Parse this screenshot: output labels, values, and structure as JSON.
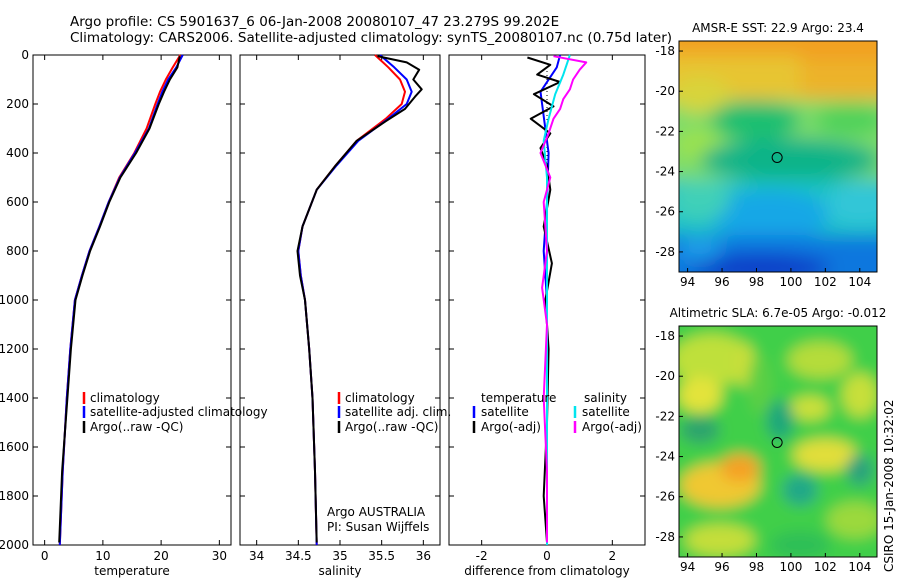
{
  "header": {
    "line1": "Argo profile: CS 5901637_6 06-Jan-2008 20080107_47 23.279S 99.202E",
    "line2": "Climatology: CARS2006. Satellite-adjusted climatology: synTS_20080107.nc (0.75d later)"
  },
  "side_label": "CSIRO 15-Jan-2008 10:32:02",
  "chart_data": [
    {
      "id": "temperature",
      "type": "line",
      "xlabel": "temperature",
      "ylabel": "",
      "xlim": [
        -2,
        32
      ],
      "ylim": [
        2000,
        0
      ],
      "xticks": [
        0,
        10,
        20,
        30
      ],
      "yticks": [
        0,
        200,
        400,
        600,
        800,
        1000,
        1200,
        1400,
        1600,
        1800,
        2000
      ],
      "legend": [
        "climatology",
        "satellite-adjusted climatology",
        "Argo(..raw -QC)"
      ],
      "series": [
        {
          "name": "climatology",
          "color": "#ff0000",
          "x": [
            23.3,
            22.0,
            20.8,
            19.8,
            19.0,
            17.5,
            15.4,
            12.8,
            11.0,
            9.4,
            7.7,
            6.4,
            5.2,
            4.4,
            3.8,
            3.1,
            2.6
          ],
          "y": [
            0,
            50,
            100,
            150,
            200,
            300,
            400,
            500,
            600,
            700,
            800,
            900,
            1000,
            1200,
            1400,
            1700,
            2000
          ]
        },
        {
          "name": "satellite-adjusted climatology",
          "color": "#0000ff",
          "x": [
            23.7,
            22.6,
            21.2,
            20.2,
            19.4,
            17.9,
            15.5,
            12.9,
            11.0,
            9.4,
            7.7,
            6.4,
            5.2,
            4.4,
            3.8,
            3.1,
            2.6
          ],
          "y": [
            0,
            50,
            100,
            150,
            200,
            300,
            400,
            500,
            600,
            700,
            800,
            900,
            1000,
            1200,
            1400,
            1700,
            2000
          ]
        },
        {
          "name": "Argo(..raw -QC)",
          "color": "#000000",
          "x": [
            23.2,
            22.8,
            21.5,
            20.5,
            19.6,
            18.0,
            15.7,
            13.0,
            11.1,
            9.5,
            7.8,
            6.5,
            5.3,
            4.5,
            3.9,
            3.0,
            2.5
          ],
          "y": [
            5,
            50,
            100,
            150,
            200,
            300,
            400,
            500,
            600,
            700,
            800,
            900,
            1000,
            1200,
            1400,
            1700,
            1990
          ]
        }
      ]
    },
    {
      "id": "salinity",
      "type": "line",
      "xlabel": "salinity",
      "xlim": [
        33.8,
        36.2
      ],
      "ylim": [
        2000,
        0
      ],
      "xticks": [
        34,
        34.5,
        35,
        35.5,
        36
      ],
      "legend": [
        "climatology",
        "satellite adj. clim.",
        "Argo(..raw -QC)"
      ],
      "annotation": [
        "Argo AUSTRALIA",
        "PI: Susan Wijffels"
      ],
      "series": [
        {
          "name": "climatology",
          "color": "#ff0000",
          "x": [
            35.42,
            35.58,
            35.72,
            35.78,
            35.74,
            35.55,
            35.2,
            34.95,
            34.72,
            34.55,
            34.5,
            34.53,
            34.58,
            34.63,
            34.67,
            34.7,
            34.72
          ],
          "y": [
            0,
            50,
            100,
            150,
            200,
            260,
            350,
            450,
            550,
            700,
            800,
            900,
            1000,
            1200,
            1400,
            1700,
            2000
          ]
        },
        {
          "name": "satellite adj. clim.",
          "color": "#0000ff",
          "x": [
            35.48,
            35.65,
            35.8,
            35.86,
            35.8,
            35.58,
            35.22,
            34.96,
            34.72,
            34.55,
            34.5,
            34.53,
            34.58,
            34.63,
            34.67,
            34.7,
            34.72
          ],
          "y": [
            0,
            50,
            100,
            150,
            200,
            260,
            350,
            450,
            550,
            700,
            800,
            900,
            1000,
            1200,
            1400,
            1700,
            2000
          ]
        },
        {
          "name": "Argo(..raw -QC)",
          "color": "#000000",
          "x": [
            35.45,
            35.8,
            35.95,
            35.88,
            35.98,
            35.9,
            35.78,
            35.55,
            35.2,
            34.95,
            34.72,
            34.55,
            34.49,
            34.52,
            34.58,
            34.63,
            34.67,
            34.7,
            34.72
          ],
          "y": [
            5,
            30,
            60,
            100,
            140,
            170,
            220,
            270,
            350,
            450,
            550,
            700,
            800,
            900,
            1000,
            1200,
            1400,
            1700,
            1990
          ]
        }
      ]
    },
    {
      "id": "difference",
      "type": "line",
      "xlabel": "difference from climatology",
      "xlim": [
        -3,
        3
      ],
      "ylim": [
        2000,
        0
      ],
      "xticks": [
        -2,
        0,
        2
      ],
      "legend_titles": [
        "temperature",
        "salinity"
      ],
      "legend": [
        "satellite",
        "Argo(-adj)",
        "satellite",
        "Argo(-adj)"
      ],
      "series": [
        {
          "name": "satellite",
          "color": "#0000ff",
          "x": [
            0.4,
            0.3,
            -0.2,
            -0.1,
            0.05,
            0.0,
            -0.1,
            0.0,
            0.0,
            0.0,
            0.0,
            0.0
          ],
          "y": [
            0,
            50,
            150,
            250,
            400,
            600,
            800,
            1000,
            1200,
            1500,
            1800,
            2000
          ]
        },
        {
          "name": "Argo(-adj)",
          "color": "#000000",
          "x": [
            -0.6,
            0.1,
            -0.3,
            0.4,
            -0.4,
            0.2,
            -0.5,
            0.1,
            -0.2,
            0.0,
            0.1,
            -0.1,
            0.15,
            -0.05,
            0.05,
            0.0,
            -0.1,
            0.0
          ],
          "y": [
            10,
            40,
            80,
            110,
            160,
            210,
            260,
            320,
            380,
            450,
            550,
            700,
            850,
            1000,
            1200,
            1500,
            1800,
            1990
          ]
        },
        {
          "name": "satellite",
          "color": "#00e5ee",
          "x": [
            0.7,
            0.5,
            0.25,
            0.05,
            -0.1,
            0.0,
            0.0,
            0.0,
            0.0,
            0.0,
            0.0
          ],
          "y": [
            0,
            80,
            160,
            260,
            350,
            500,
            700,
            1000,
            1400,
            1800,
            2000
          ]
        },
        {
          "name": "Argo(-adj)",
          "color": "#ff00ff",
          "x": [
            0.2,
            1.2,
            1.0,
            0.8,
            0.7,
            0.5,
            0.4,
            0.2,
            0.05,
            -0.2,
            0.1,
            -0.1,
            0.0,
            -0.15,
            0.0,
            -0.1,
            0.0,
            0.0
          ],
          "y": [
            5,
            30,
            60,
            100,
            140,
            180,
            220,
            260,
            320,
            400,
            500,
            600,
            800,
            950,
            1100,
            1400,
            1700,
            1990
          ]
        }
      ]
    },
    {
      "id": "sst-map",
      "type": "heatmap",
      "title": "AMSR-E SST: 22.9 Argo: 23.4",
      "xlim": [
        93.5,
        105
      ],
      "ylim": [
        -29,
        -17.5
      ],
      "xticks": [
        94,
        96,
        98,
        100,
        102,
        104
      ],
      "yticks": [
        -18,
        -20,
        -22,
        -24,
        -26,
        -28
      ],
      "marker": {
        "lon": 99.2,
        "lat": -23.3
      }
    },
    {
      "id": "sla-map",
      "type": "heatmap",
      "title": "Altimetric SLA: 6.7e-05 Argo: -0.012",
      "xlim": [
        93.5,
        105
      ],
      "ylim": [
        -29,
        -17.5
      ],
      "xticks": [
        94,
        96,
        98,
        100,
        102,
        104
      ],
      "yticks": [
        -18,
        -20,
        -22,
        -24,
        -26,
        -28
      ],
      "marker": {
        "lon": 99.2,
        "lat": -23.3
      }
    }
  ]
}
